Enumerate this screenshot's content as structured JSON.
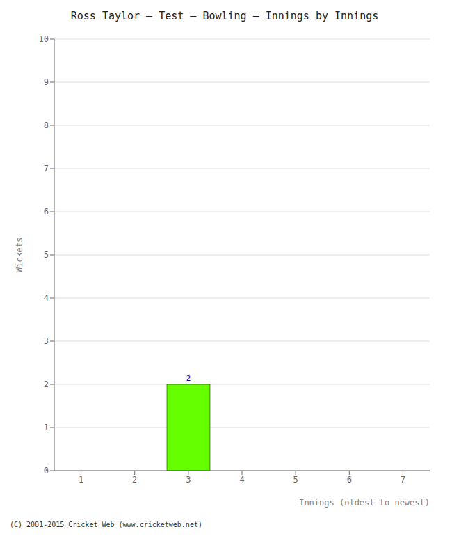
{
  "chart_data": {
    "type": "bar",
    "title": "Ross Taylor – Test – Bowling – Innings by Innings",
    "xlabel": "Innings (oldest to newest)",
    "ylabel": "Wickets",
    "categories": [
      "1",
      "2",
      "3",
      "4",
      "5",
      "6",
      "7"
    ],
    "values": [
      0,
      0,
      2,
      0,
      0,
      0,
      0
    ],
    "color": "#66ff00",
    "ylim": [
      0,
      10
    ],
    "yticks": [
      0,
      1,
      2,
      3,
      4,
      5,
      6,
      7,
      8,
      9,
      10
    ],
    "grid": true,
    "data_labels": true,
    "annotations": [
      "(C) 2001-2015 Cricket Web (www.cricketweb.net)"
    ]
  }
}
